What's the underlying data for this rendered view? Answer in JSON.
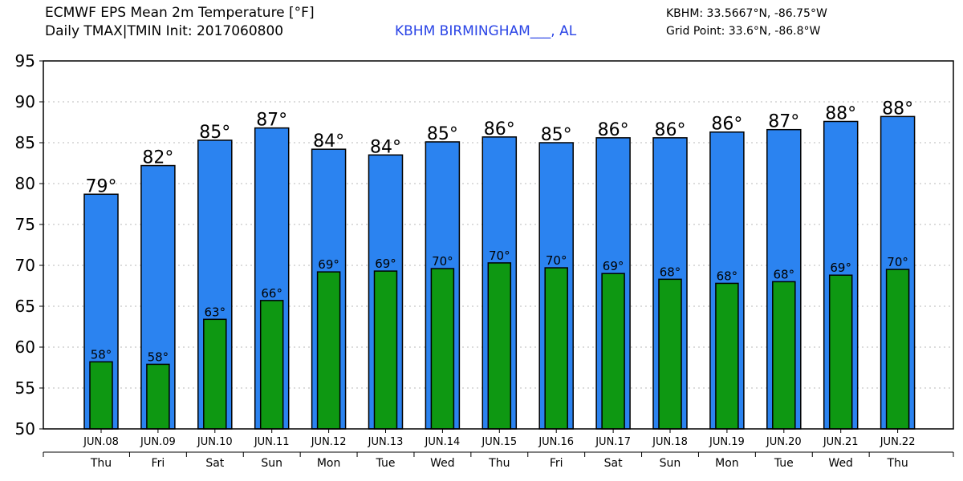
{
  "header": {
    "title": "ECMWF EPS Mean 2m Temperature [°F]",
    "subtitle": "Daily TMAX|TMIN Init: 2017060800",
    "station": "KBHM BIRMINGHAM___, AL",
    "coords": "KBHM: 33.5667°N, -86.75°W",
    "grid_point": "Grid Point: 33.6°N, -86.8°W"
  },
  "colors": {
    "tmax": "#2b83f0",
    "tmin": "#0e9812",
    "station_text": "#2a44e6"
  },
  "chart_data": {
    "type": "bar",
    "categories": [
      "JUN.08",
      "JUN.09",
      "JUN.10",
      "JUN.11",
      "JUN.12",
      "JUN.13",
      "JUN.14",
      "JUN.15",
      "JUN.16",
      "JUN.17",
      "JUN.18",
      "JUN.19",
      "JUN.20",
      "JUN.21",
      "JUN.22"
    ],
    "weekdays": [
      "Thu",
      "Fri",
      "Sat",
      "Sun",
      "Mon",
      "Tue",
      "Wed",
      "Thu",
      "Fri",
      "Sat",
      "Sun",
      "Mon",
      "Tue",
      "Wed",
      "Thu"
    ],
    "series": [
      {
        "values": [
          78.7,
          82.2,
          85.3,
          86.8,
          84.2,
          83.5,
          85.1,
          85.7,
          85.0,
          85.6,
          85.6,
          86.3,
          86.6,
          87.6,
          88.2
        ],
        "labels": [
          "79°",
          "82°",
          "85°",
          "87°",
          "84°",
          "84°",
          "85°",
          "86°",
          "85°",
          "86°",
          "86°",
          "86°",
          "87°",
          "88°",
          "88°"
        ]
      },
      {
        "values": [
          58.2,
          57.9,
          63.4,
          65.7,
          69.2,
          69.3,
          69.6,
          70.3,
          69.7,
          69.0,
          68.3,
          67.8,
          68.0,
          68.8,
          69.5
        ],
        "labels": [
          "58°",
          "58°",
          "63°",
          "66°",
          "69°",
          "69°",
          "70°",
          "70°",
          "70°",
          "69°",
          "68°",
          "68°",
          "68°",
          "69°",
          "70°"
        ]
      }
    ],
    "ylim": [
      50,
      95
    ],
    "yticks": [
      "50",
      "55",
      "60",
      "65",
      "70",
      "75",
      "80",
      "85",
      "90",
      "95"
    ],
    "grid": true
  }
}
